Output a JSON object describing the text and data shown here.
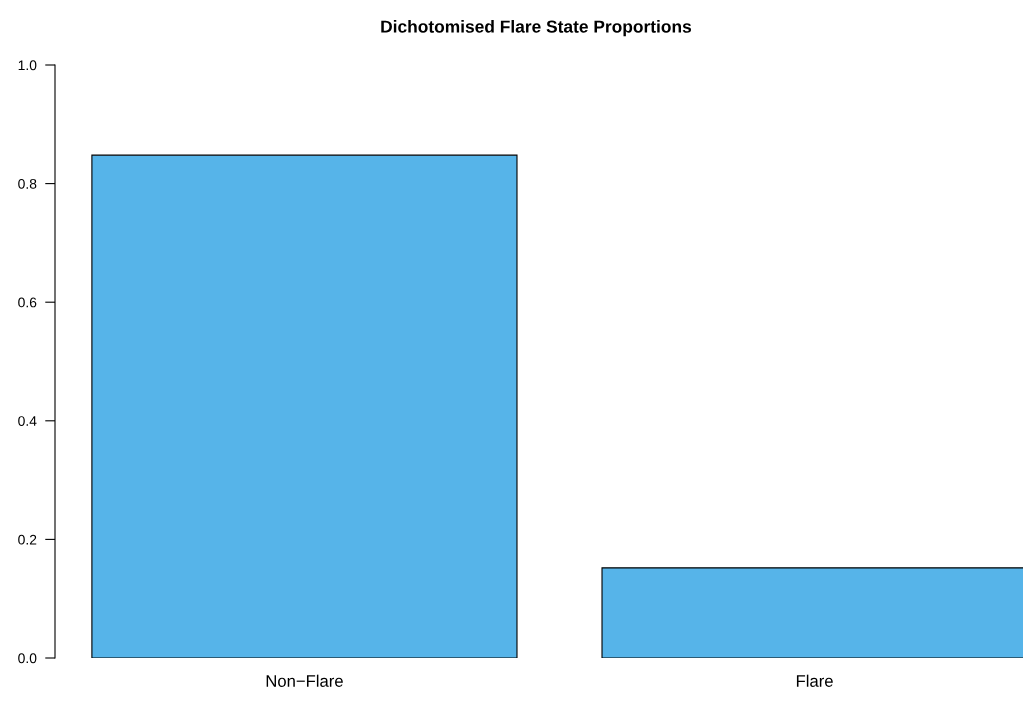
{
  "chart_data": {
    "type": "bar",
    "title": "Dichotomised Flare State Proportions",
    "categories": [
      "Non−Flare",
      "Flare"
    ],
    "values": [
      0.848,
      0.152
    ],
    "color": "#56b4e9",
    "ylim": [
      0,
      1
    ],
    "yticks": [
      {
        "value": 0,
        "label": "0.0"
      },
      0.2,
      0.4,
      0.6,
      0.8,
      {
        "value": 1,
        "label": "1.0"
      }
    ],
    "grid": false,
    "legend": false
  }
}
